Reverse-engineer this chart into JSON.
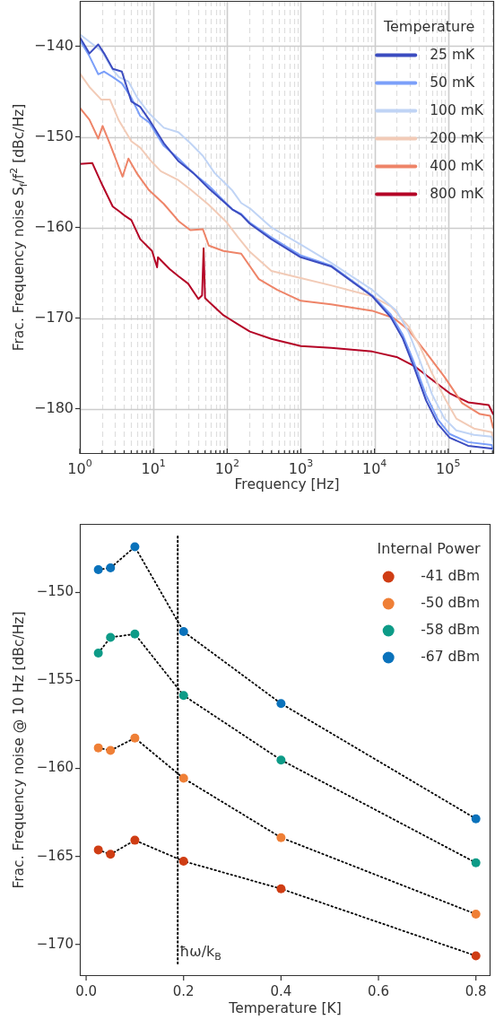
{
  "chart_data": [
    {
      "type": "line",
      "xlabel": "Frequency [Hz]",
      "ylabel": "Frac. Frequency noise S$_{f}$/f$^{2}$ [dBc/Hz]",
      "legend_title": "Temperature",
      "log": "x",
      "grid": true,
      "legend": "top right",
      "xlim": [
        1,
        420000
      ],
      "ylim": [
        -185,
        -135
      ],
      "xticks": [
        {
          "value": 1,
          "label": "10$^{0}$"
        },
        {
          "value": 2,
          "label": null
        },
        {
          "value": 3,
          "label": null
        },
        {
          "value": 4,
          "label": null
        },
        {
          "value": 5,
          "label": null
        },
        {
          "value": 6,
          "label": null
        },
        {
          "value": 7,
          "label": null
        },
        {
          "value": 8,
          "label": null
        },
        {
          "value": 9,
          "label": null
        },
        {
          "value": 10,
          "label": "10$^{1}$"
        },
        {
          "value": 20,
          "label": null
        },
        {
          "value": 30,
          "label": null
        },
        {
          "value": 40,
          "label": null
        },
        {
          "value": 50,
          "label": null
        },
        {
          "value": 60,
          "label": null
        },
        {
          "value": 70,
          "label": null
        },
        {
          "value": 80,
          "label": null
        },
        {
          "value": 90,
          "label": null
        },
        {
          "value": 100,
          "label": "10$^{2}$"
        },
        {
          "value": 200,
          "label": null
        },
        {
          "value": 300,
          "label": null
        },
        {
          "value": 400,
          "label": null
        },
        {
          "value": 500,
          "label": null
        },
        {
          "value": 600,
          "label": null
        },
        {
          "value": 700,
          "label": null
        },
        {
          "value": 800,
          "label": null
        },
        {
          "value": 900,
          "label": null
        },
        {
          "value": 1000,
          "label": "10$^{3}$"
        },
        {
          "value": 2000,
          "label": null
        },
        {
          "value": 3000,
          "label": null
        },
        {
          "value": 4000,
          "label": null
        },
        {
          "value": 5000,
          "label": null
        },
        {
          "value": 6000,
          "label": null
        },
        {
          "value": 7000,
          "label": null
        },
        {
          "value": 8000,
          "label": null
        },
        {
          "value": 9000,
          "label": null
        },
        {
          "value": 10000,
          "label": "10$^{4}$"
        },
        {
          "value": 20000,
          "label": null
        },
        {
          "value": 30000,
          "label": null
        },
        {
          "value": 40000,
          "label": null
        },
        {
          "value": 50000,
          "label": null
        },
        {
          "value": 60000,
          "label": null
        },
        {
          "value": 70000,
          "label": null
        },
        {
          "value": 80000,
          "label": null
        },
        {
          "value": 90000,
          "label": null
        },
        {
          "value": 100000,
          "label": "10$^{5}$"
        },
        {
          "value": 200000,
          "label": null
        },
        {
          "value": 300000,
          "label": null
        },
        {
          "value": 400000,
          "label": null
        }
      ],
      "yticks": [
        -180,
        -170,
        -160,
        -150,
        -140
      ],
      "series": [
        {
          "name": "25 mK",
          "color": "#3b4cc0",
          "x": [
            1,
            1.35,
            1.78,
            2.14,
            2.8,
            3.72,
            5.01,
            6.61,
            8.71,
            13.8,
            21.9,
            34.7,
            56.2,
            117,
            155,
            204,
            398,
            1000,
            2570,
            9330,
            16600,
            24000,
            34700,
            50100,
            72400,
            104700,
            186200,
            389000
          ],
          "values": [
            -139.0,
            -140.8,
            -139.8,
            -140.8,
            -142.5,
            -142.8,
            -146.1,
            -146.7,
            -148.1,
            -150.7,
            -152.7,
            -154.0,
            -155.7,
            -158.0,
            -158.6,
            -159.6,
            -161.3,
            -163.3,
            -164.3,
            -167.6,
            -169.9,
            -172.2,
            -175.5,
            -179.1,
            -181.7,
            -183.2,
            -184.1,
            -184.4
          ]
        },
        {
          "name": "50 mK",
          "color": "#7b9ff9",
          "x": [
            1,
            1.35,
            1.78,
            2.14,
            2.8,
            3.72,
            5.01,
            6.61,
            8.71,
            13.8,
            21.9,
            34.7,
            56.2,
            117,
            155,
            204,
            398,
            1000,
            2570,
            9330,
            16600,
            24000,
            34700,
            50100,
            72400,
            104700,
            186200,
            389000,
            407000
          ],
          "values": [
            -139.3,
            -141.1,
            -143.1,
            -142.8,
            -143.4,
            -144.1,
            -145.7,
            -147.7,
            -148.4,
            -151.0,
            -152.4,
            -154.0,
            -155.4,
            -158.0,
            -158.5,
            -159.5,
            -161.1,
            -163.1,
            -164.2,
            -167.5,
            -169.6,
            -171.8,
            -175.0,
            -178.5,
            -181.2,
            -182.8,
            -183.7,
            -184.0,
            -184.6
          ]
        },
        {
          "name": "100 mK",
          "color": "#c0d4f5",
          "x": [
            1,
            1.35,
            1.96,
            2.8,
            3.39,
            4.57,
            6.03,
            8.71,
            13.8,
            21.9,
            31.6,
            46.8,
            67.6,
            117,
            155,
            204,
            398,
            1000,
            2570,
            9330,
            19950,
            28800,
            41700,
            60300,
            89100,
            128800,
            223900,
            389000,
            407000
          ],
          "values": [
            -138.7,
            -139.5,
            -140.5,
            -142.6,
            -143.4,
            -143.9,
            -145.7,
            -147.4,
            -149.0,
            -149.5,
            -150.7,
            -152.1,
            -154.0,
            -155.9,
            -157.3,
            -157.9,
            -160.0,
            -161.9,
            -163.9,
            -166.9,
            -169.2,
            -171.5,
            -174.8,
            -178.4,
            -181.1,
            -182.4,
            -182.9,
            -183.1,
            -183.7
          ]
        },
        {
          "name": "200 mK",
          "color": "#f2cbb7",
          "x": [
            1,
            1.35,
            1.96,
            2.57,
            3.39,
            5.01,
            6.61,
            9.55,
            12.6,
            21.9,
            31.6,
            56.2,
            97.7,
            141,
            204,
            398,
            1000,
            2570,
            9330,
            16600,
            28800,
            41700,
            60300,
            89100,
            128800,
            223900,
            389000,
            407000
          ],
          "values": [
            -143.0,
            -144.5,
            -145.9,
            -145.9,
            -148.2,
            -150.5,
            -151.2,
            -152.8,
            -153.8,
            -154.8,
            -155.8,
            -157.5,
            -159.4,
            -161.1,
            -162.7,
            -164.8,
            -165.6,
            -166.4,
            -167.6,
            -168.7,
            -170.9,
            -173.2,
            -176.1,
            -178.8,
            -181.1,
            -182.2,
            -182.6,
            -183.4
          ]
        },
        {
          "name": "400 mK",
          "color": "#ee8468",
          "x": [
            1,
            1.35,
            1.78,
            2.04,
            2.57,
            3.8,
            4.57,
            6.03,
            8.71,
            13.8,
            21.9,
            31.6,
            46.8,
            56.2,
            89.1,
            155,
            269,
            479,
            1000,
            2570,
            9330,
            18200,
            28800,
            50100,
            89100,
            154900,
            269200,
            371500,
            407000
          ],
          "values": [
            -146.8,
            -148.1,
            -150.2,
            -148.8,
            -150.8,
            -154.4,
            -152.4,
            -154.1,
            -155.9,
            -157.4,
            -159.3,
            -160.3,
            -160.2,
            -162.0,
            -162.6,
            -162.9,
            -165.7,
            -166.9,
            -168.1,
            -168.5,
            -169.2,
            -170.0,
            -171.3,
            -173.8,
            -176.5,
            -179.4,
            -180.6,
            -180.8,
            -182.1
          ]
        },
        {
          "name": "800 mK",
          "color": "#b40426",
          "x": [
            1,
            1.48,
            2.04,
            2.8,
            3.39,
            4.07,
            5.01,
            6.61,
            9.55,
            11.2,
            11.5,
            16.6,
            21.9,
            29.5,
            40.7,
            45.7,
            47.9,
            50.1,
            56.2,
            89.1,
            141,
            204,
            398,
            1000,
            2570,
            9330,
            19950,
            34700,
            60300,
            104700,
            186200,
            354800,
            407000
          ],
          "values": [
            -153.0,
            -152.9,
            -155.4,
            -157.7,
            -158.2,
            -158.7,
            -159.2,
            -161.3,
            -162.6,
            -164.4,
            -163.3,
            -164.6,
            -165.4,
            -166.2,
            -167.9,
            -167.5,
            -162.3,
            -167.8,
            -168.2,
            -169.7,
            -170.7,
            -171.5,
            -172.3,
            -173.1,
            -173.3,
            -173.7,
            -174.3,
            -175.3,
            -176.8,
            -178.3,
            -179.3,
            -179.6,
            -180.6
          ]
        }
      ]
    },
    {
      "type": "line",
      "xlabel": "Temperature [K]",
      "ylabel": "Frac. Frequency noise @ 10 Hz [dBc/Hz]",
      "legend_title": "Internal Power",
      "legend": "top right",
      "marker": "circle",
      "line_style": "dotted",
      "xlim": [
        -0.013,
        0.83
      ],
      "ylim": [
        -171.8,
        -146.1
      ],
      "xticks": [
        {
          "value": 0,
          "label": "0.0"
        },
        0.2,
        0.4,
        0.6,
        0.8
      ],
      "yticks": [
        -170,
        -165,
        -160,
        -155,
        -150
      ],
      "ref_lines": [
        {
          "axis": "x",
          "value": 0.188,
          "label": "ħω/k$_{B}$",
          "color": "#000000",
          "line_style": "dotted"
        }
      ],
      "series": [
        {
          "name": "-41 dBm",
          "color": "#cf3d14",
          "x": [
            0.025,
            0.05,
            0.1,
            0.2,
            0.4,
            0.8
          ],
          "values": [
            -164.63,
            -164.88,
            -164.08,
            -165.27,
            -166.84,
            -170.65
          ]
        },
        {
          "name": "-50 dBm",
          "color": "#ef7f36",
          "x": [
            0.025,
            0.05,
            0.1,
            0.2,
            0.4,
            0.8
          ],
          "values": [
            -158.83,
            -158.98,
            -158.27,
            -160.56,
            -163.93,
            -168.28
          ]
        },
        {
          "name": "-58 dBm",
          "color": "#0d9b87",
          "x": [
            0.025,
            0.05,
            0.1,
            0.2,
            0.4,
            0.8
          ],
          "values": [
            -153.44,
            -152.55,
            -152.36,
            -155.85,
            -159.52,
            -165.36
          ]
        },
        {
          "name": "-67 dBm",
          "color": "#0a72bb",
          "x": [
            0.025,
            0.05,
            0.1,
            0.2,
            0.4,
            0.8
          ],
          "values": [
            -148.7,
            -148.6,
            -147.4,
            -152.22,
            -156.31,
            -162.86
          ]
        }
      ]
    }
  ]
}
